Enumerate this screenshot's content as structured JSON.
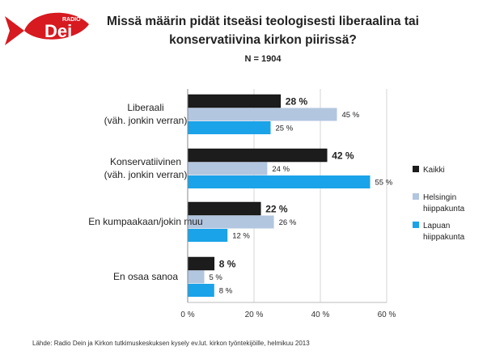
{
  "logo": {
    "small_text": "RADIO",
    "text": "Dei"
  },
  "chart_data": {
    "type": "bar",
    "orientation": "horizontal",
    "title_lines": [
      "Missä määrin pidät itseäsi teologisesti liberaalina tai",
      "konservatiivina kirkon piirissä?"
    ],
    "subtitle": "N = 1904",
    "categories": [
      [
        "Liberaali",
        "(väh. jonkin verran)"
      ],
      [
        "Konservatiivinen",
        "(väh. jonkin verran)"
      ],
      [
        "En kumpaakaan/jokin muu"
      ],
      [
        "En osaa sanoa"
      ]
    ],
    "series": [
      {
        "name": "Kaikki",
        "values": [
          28,
          42,
          22,
          8
        ],
        "color": "#1c1c1c",
        "label_bold": true
      },
      {
        "name_lines": [
          "Helsingin",
          "hiippakunta"
        ],
        "values": [
          45,
          24,
          26,
          5
        ],
        "color": "#b3c6e0",
        "label_bold": false
      },
      {
        "name_lines": [
          "Lapuan",
          "hiippakunta"
        ],
        "values": [
          25,
          55,
          12,
          8
        ],
        "color": "#1aa3e8",
        "label_bold": false
      }
    ],
    "value_suffix": " %",
    "xlim": [
      0,
      60
    ],
    "xticks": [
      "0 %",
      "20 %",
      "40 %",
      "60 %"
    ],
    "tick_values": [
      0,
      20,
      40,
      60
    ],
    "legend_position": "right",
    "grid": true
  },
  "source": "Lähde: Radio Dein ja Kirkon tutkimuskeskuksen kysely ev.lut. kirkon työntekijöille, helmikuu 2013"
}
